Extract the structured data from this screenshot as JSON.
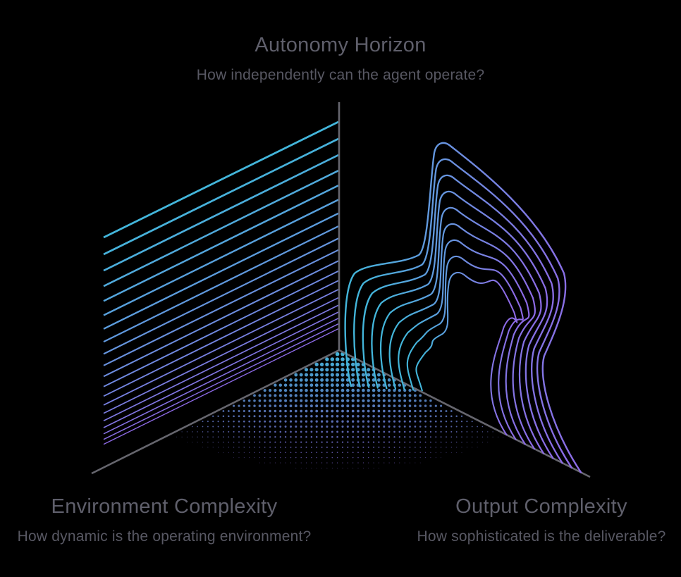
{
  "page": {
    "background": "#000000"
  },
  "axes": {
    "autonomy": {
      "title": "Autonomy Horizon",
      "subtitle": "How independently can the agent operate?"
    },
    "environment": {
      "title": "Environment Complexity",
      "subtitle": "How dynamic is the operating environment?"
    },
    "output": {
      "title": "Output Complexity",
      "subtitle": "How sophisticated is the deliverable?"
    }
  },
  "palette": {
    "background": "#000000",
    "cyan": "#43b6db",
    "blue": "#6b8fdf",
    "violet": "#8d6ae6",
    "axis_gray": "#66666e",
    "title_color": "#5f5f6b",
    "subtitle_color": "#585863"
  },
  "chart_data": {
    "type": "diagram",
    "description": "Three-axis conceptual diagram of agent capability dimensions, drawn as an isometric corner: a vertical axis and two floor axes, with a lined gradient wall on the left, nested ridge contour lines on the right, and a halftone dot-grid floor.",
    "axes": [
      {
        "name": "Autonomy Horizon",
        "question": "How independently can the agent operate?",
        "direction": "vertical"
      },
      {
        "name": "Environment Complexity",
        "question": "How dynamic is the operating environment?",
        "direction": "lower-left"
      },
      {
        "name": "Output Complexity",
        "question": "How sophisticated is the deliverable?",
        "direction": "lower-right"
      }
    ],
    "decorations": {
      "left_wall_parallel_lines": 20,
      "right_wall_ridge_contours": 9,
      "floor": "halftone dot grid fading with depth",
      "gradient": [
        "#43b6db",
        "#6b8fdf",
        "#8d6ae6"
      ]
    }
  }
}
